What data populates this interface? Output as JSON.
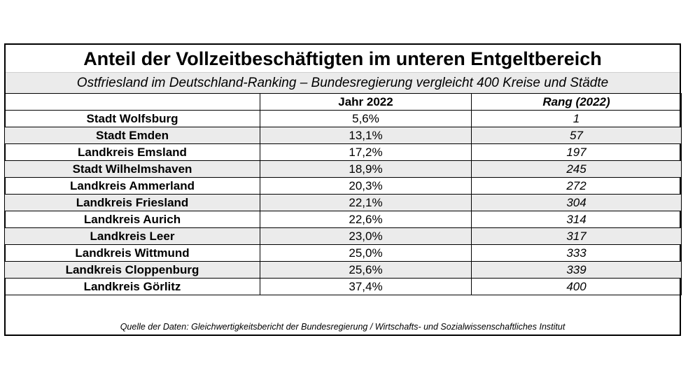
{
  "title": "Anteil der Vollzeitbeschäftigten im unteren Entgeltbereich",
  "subtitle": "Ostfriesland im Deutschland-Ranking – Bundesregierung vergleicht 400 Kreise und Städte",
  "table": {
    "headers": [
      "",
      "Jahr 2022",
      "Rang (2022)"
    ],
    "rows": [
      {
        "region": "Stadt Wolfsburg",
        "share": "5,6%",
        "rank": "1"
      },
      {
        "region": "Stadt Emden",
        "share": "13,1%",
        "rank": "57"
      },
      {
        "region": "Landkreis Emsland",
        "share": "17,2%",
        "rank": "197"
      },
      {
        "region": "Stadt Wilhelmshaven",
        "share": "18,9%",
        "rank": "245"
      },
      {
        "region": "Landkreis Ammerland",
        "share": "20,3%",
        "rank": "272"
      },
      {
        "region": "Landkreis Friesland",
        "share": "22,1%",
        "rank": "304"
      },
      {
        "region": "Landkreis Aurich",
        "share": "22,6%",
        "rank": "314"
      },
      {
        "region": "Landkreis Leer",
        "share": "23,0%",
        "rank": "317"
      },
      {
        "region": "Landkreis Wittmund",
        "share": "25,0%",
        "rank": "333"
      },
      {
        "region": "Landkreis Cloppenburg",
        "share": "25,6%",
        "rank": "339"
      },
      {
        "region": "Landkreis Görlitz",
        "share": "37,4%",
        "rank": "400"
      }
    ]
  },
  "source": "Quelle der Daten: Gleichwertigkeitsbericht der Bundesregierung / Wirtschafts- und Sozialwissenschaftliches Institut",
  "colors": {
    "border": "#000000",
    "shade": "#ebebeb",
    "background": "#ffffff"
  }
}
